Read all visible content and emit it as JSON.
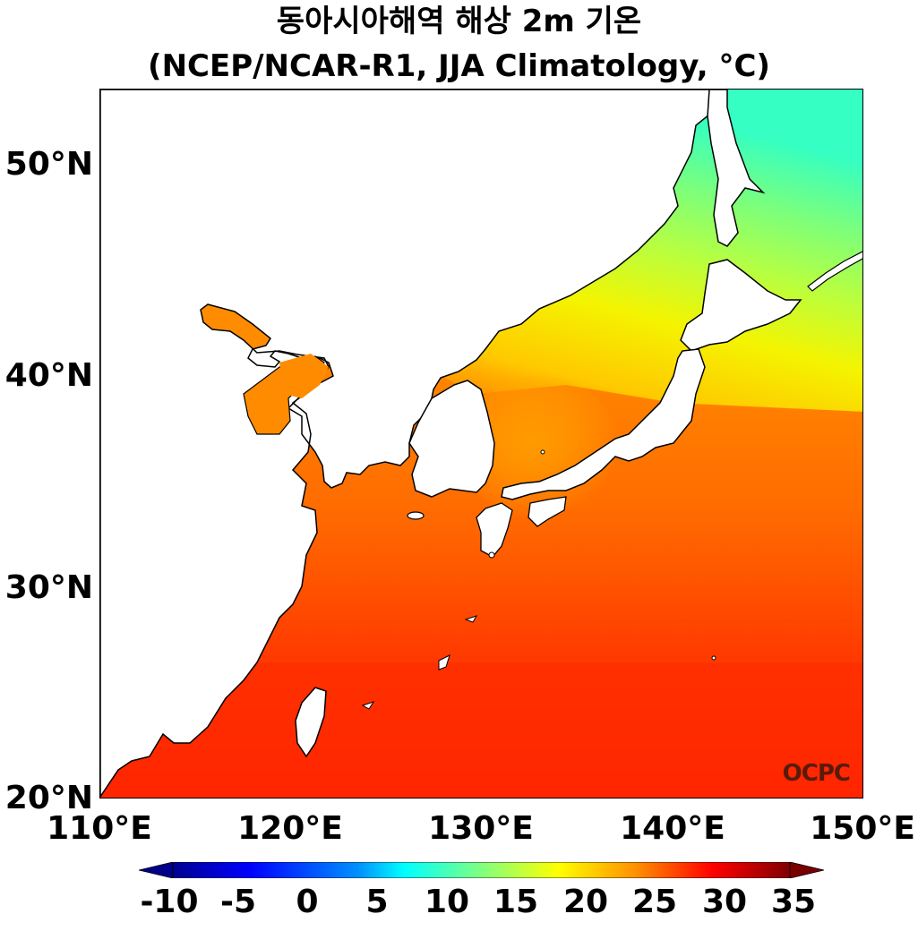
{
  "title": {
    "line1": "동아시아해역 해상 2m 기온",
    "line2": "(NCEP/NCAR-R1, JJA Climatology, °C)"
  },
  "axes": {
    "lat_labels": [
      "50°N",
      "40°N",
      "30°N",
      "20°N"
    ],
    "lon_labels": [
      "110°E",
      "120°E",
      "130°E",
      "140°E",
      "150°E"
    ],
    "lat_range": [
      20,
      53.5
    ],
    "lon_range": [
      110,
      150
    ]
  },
  "colorbar": {
    "labels": [
      "-10",
      "-5",
      "0",
      "5",
      "10",
      "15",
      "20",
      "25",
      "30",
      "35"
    ],
    "range": [
      -10,
      35
    ],
    "colormap": "jet",
    "extend": "both"
  },
  "watermark": "OCPC",
  "colors": {
    "land": "#ffffff",
    "coast": "#000000",
    "warm": "#ff2a00",
    "orange": "#ff8a00",
    "yellow": "#f4f400",
    "green": "#7dff7a",
    "cyan": "#35ffc2"
  }
}
